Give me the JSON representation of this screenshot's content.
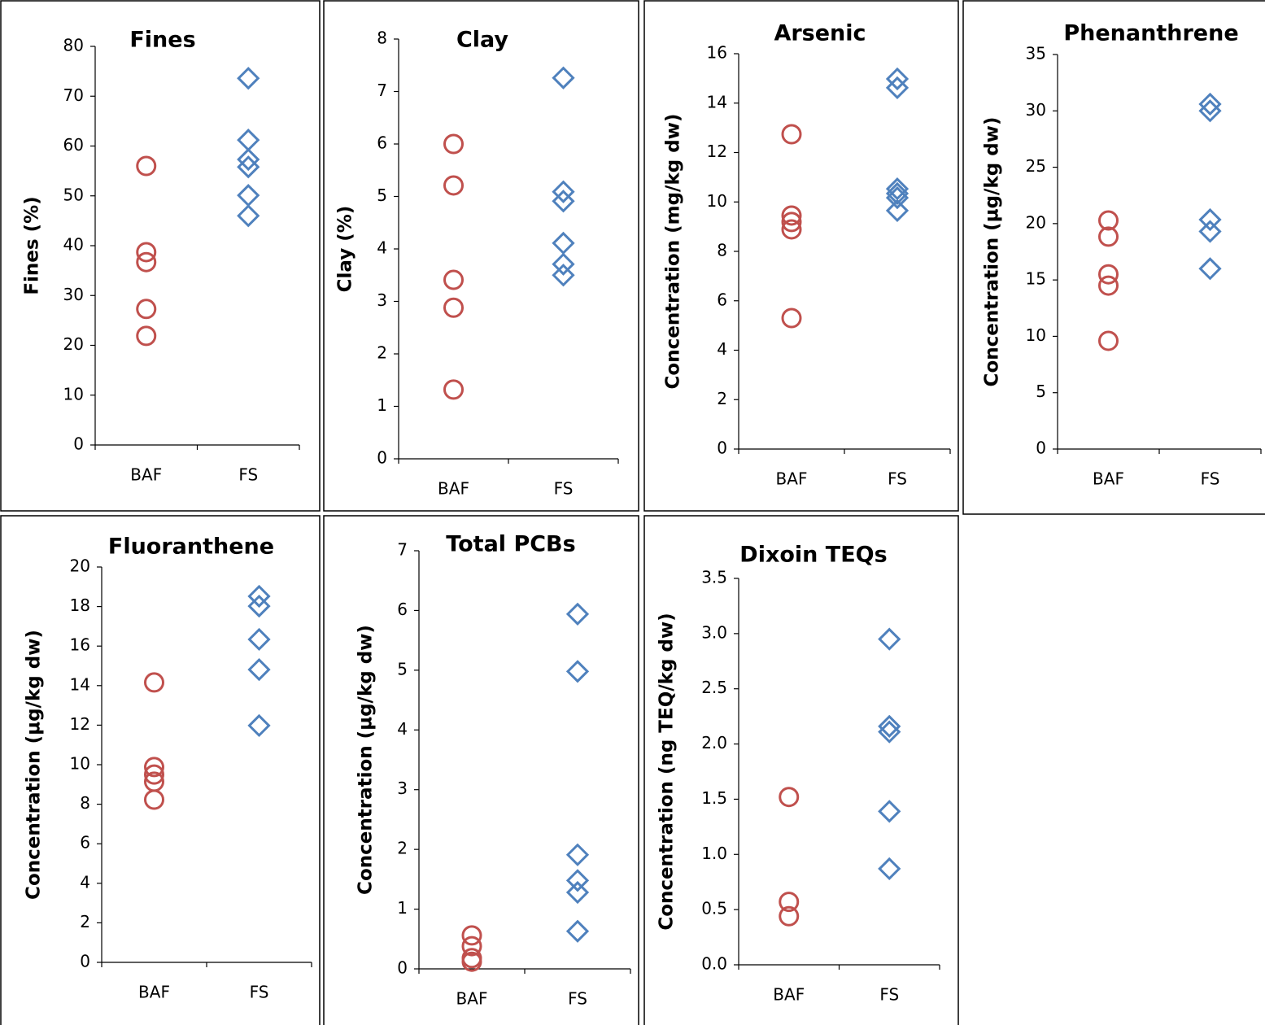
{
  "chart_data": [
    {
      "type": "strip",
      "title": "Fines",
      "y_label": "Fines (%)",
      "categories": [
        "BAF",
        "FS"
      ],
      "values": [
        [
          56.0,
          38.7,
          36.7,
          27.3,
          21.9
        ],
        [
          73.6,
          61.2,
          57.3,
          55.8,
          50.1,
          46.0
        ]
      ],
      "colors": [
        "#c0504d",
        "#4f81bd"
      ],
      "markers": [
        "circle",
        "diamond"
      ],
      "ylim": [
        0,
        80
      ],
      "yticks": [
        0,
        10,
        20,
        30,
        40,
        50,
        60,
        70,
        80
      ]
    },
    {
      "type": "strip",
      "title": "Clay",
      "y_label": "Clay (%)",
      "categories": [
        "BAF",
        "FS"
      ],
      "values": [
        [
          6.0,
          5.21,
          3.41,
          2.88,
          1.32
        ],
        [
          7.26,
          5.09,
          4.91,
          4.11,
          3.71,
          3.5
        ]
      ],
      "colors": [
        "#c0504d",
        "#4f81bd"
      ],
      "markers": [
        "circle",
        "diamond"
      ],
      "ylim": [
        0,
        8
      ],
      "yticks": [
        0,
        1,
        2,
        3,
        4,
        5,
        6,
        7,
        8
      ]
    },
    {
      "type": "strip",
      "title": "Arsenic",
      "y_label": "Concentration (mg/kg dw)",
      "categories": [
        "BAF",
        "FS"
      ],
      "values": [
        [
          12.74,
          9.45,
          9.19,
          8.89,
          5.3
        ],
        [
          14.98,
          14.62,
          10.53,
          10.34,
          10.17,
          9.65
        ]
      ],
      "colors": [
        "#c0504d",
        "#4f81bd"
      ],
      "markers": [
        "circle",
        "diamond"
      ],
      "ylim": [
        0,
        16
      ],
      "yticks": [
        0,
        2,
        4,
        6,
        8,
        10,
        12,
        14,
        16
      ]
    },
    {
      "type": "strip",
      "title": "Phenanthrene",
      "y_label": "Concentration (µg/kg dw)",
      "categories": [
        "BAF",
        "FS"
      ],
      "values": [
        [
          20.28,
          18.84,
          15.5,
          14.5,
          9.6
        ],
        [
          30.6,
          30.0,
          20.35,
          19.3,
          16.0
        ]
      ],
      "colors": [
        "#c0504d",
        "#4f81bd"
      ],
      "markers": [
        "circle",
        "diamond"
      ],
      "ylim": [
        0,
        35
      ],
      "yticks": [
        0,
        5,
        10,
        15,
        20,
        25,
        30,
        35
      ]
    },
    {
      "type": "strip",
      "title": "Fluoranthene",
      "y_label": "Concentration (µg/kg dw)",
      "categories": [
        "BAF",
        "FS"
      ],
      "values": [
        [
          14.16,
          9.88,
          9.5,
          9.14,
          8.23
        ],
        [
          18.52,
          18.02,
          16.34,
          14.81,
          11.98
        ]
      ],
      "colors": [
        "#c0504d",
        "#4f81bd"
      ],
      "markers": [
        "circle",
        "diamond"
      ],
      "ylim": [
        0,
        20
      ],
      "yticks": [
        0,
        2,
        4,
        6,
        8,
        10,
        12,
        14,
        16,
        18,
        20
      ]
    },
    {
      "type": "strip",
      "title": "Total PCBs",
      "y_label": "Concentration (µg/kg dw)",
      "categories": [
        "BAF",
        "FS"
      ],
      "values": [
        [
          0.56,
          0.38,
          0.18,
          0.12
        ],
        [
          5.94,
          4.98,
          1.91,
          1.48,
          1.28,
          0.63
        ]
      ],
      "colors": [
        "#c0504d",
        "#4f81bd"
      ],
      "markers": [
        "circle",
        "diamond"
      ],
      "ylim": [
        0,
        7
      ],
      "yticks": [
        0,
        1,
        2,
        3,
        4,
        5,
        6,
        7
      ]
    },
    {
      "type": "strip",
      "title": "Dixoin TEQs",
      "y_label": "Concentration (ng TEQ/kg dw)",
      "categories": [
        "BAF",
        "FS"
      ],
      "values": [
        [
          1.52,
          0.57,
          0.44
        ],
        [
          2.95,
          2.16,
          2.11,
          1.39,
          0.87
        ]
      ],
      "colors": [
        "#c0504d",
        "#4f81bd"
      ],
      "markers": [
        "circle",
        "diamond"
      ],
      "ylim": [
        0,
        3.5
      ],
      "yticks": [
        {
          "value": 0,
          "label": "0.0"
        },
        {
          "value": 0.5,
          "label": "0.5"
        },
        {
          "value": 1,
          "label": "1.0"
        },
        {
          "value": 1.5,
          "label": "1.5"
        },
        {
          "value": 2,
          "label": "2.0"
        },
        {
          "value": 2.5,
          "label": "2.5"
        },
        {
          "value": 3,
          "label": "3.0"
        },
        {
          "value": 3.5,
          "label": "3.5"
        }
      ]
    }
  ]
}
